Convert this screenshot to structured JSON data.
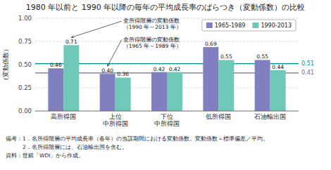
{
  "chart_data": {
    "type": "bar",
    "title": "1980 年以前と 1990 年以降の毎年の平均成長率のばらつき（変動係数）の比較",
    "ylabel": "（変動係数）",
    "categories": [
      "高所得国",
      "上位\n中所得国",
      "下位\n中所得国",
      "低所得国",
      "石油輸出国"
    ],
    "series": [
      {
        "name": "1965-1989",
        "color": "#8080c0",
        "values": [
          0.46,
          0.4,
          0.42,
          0.69,
          0.55
        ],
        "value_labels": [
          "0.46",
          "0.40",
          "0.42",
          "0.69",
          "0.55"
        ]
      },
      {
        "name": "1990-2013",
        "color": "#70c8b8",
        "values": [
          0.71,
          0.36,
          0.42,
          0.55,
          0.44
        ],
        "value_labels": [
          "0.71",
          "0.36",
          "0.42",
          "0.55",
          "0.44"
        ]
      }
    ],
    "ylim": [
      0,
      1.0
    ],
    "yticks": [
      {
        "value": 0,
        "label": "0.00"
      },
      0.25,
      {
        "value": 0.5,
        "label": "0.50"
      },
      0.75,
      {
        "value": 1.0,
        "label": "1.00"
      }
    ],
    "grid": true,
    "legend": "upper right",
    "data_labels": true,
    "reference_lines": [
      {
        "value": 0.51,
        "label": "0.51",
        "color": "#009090"
      },
      {
        "value": 0.41,
        "label": "0.41",
        "color": "#6868a8"
      }
    ],
    "annotations": [
      "全所得階層の変動係数\n（1990 年～2013 年）",
      "全所得階層の変動係数\n（1965 年～1989 年）"
    ],
    "notes": [
      "備考：1．名所得階層の平均成長率（各年）の当該期間における変動係数。変動係数＝標準偏差／平均。",
      "　　　2．名所得階層には、石油輸出国を含む。"
    ],
    "source": "資料：世銀「WDI」から作成。"
  }
}
